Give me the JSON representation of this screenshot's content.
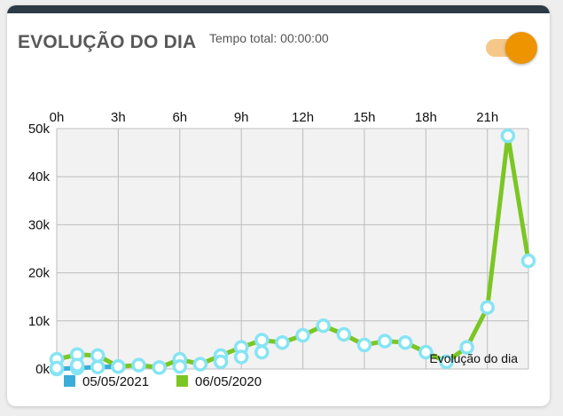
{
  "header": {
    "title": "EVOLUÇÃO DO DIA",
    "subtitle": "Tempo total: 00:00:00",
    "toggle_on": true,
    "toggle_color": "#ee9400"
  },
  "chart_data": {
    "type": "line",
    "title": "",
    "description": "Evolução do dia",
    "x_ticks": [
      "0h",
      "3h",
      "6h",
      "9h",
      "12h",
      "15h",
      "18h",
      "21h"
    ],
    "x_range": [
      0,
      23
    ],
    "y_ticks": [
      "0k",
      "10k",
      "20k",
      "30k",
      "40k",
      "50k"
    ],
    "ylim": [
      0,
      50000
    ],
    "grid": true,
    "legend_position": "bottom-left",
    "series": [
      {
        "name": "05/05/2021",
        "color": "#3aaed8",
        "x": [
          0,
          1,
          2,
          3
        ],
        "y": [
          0,
          200,
          400,
          500
        ]
      },
      {
        "name": "06/05/2020",
        "color": "#7cc624",
        "x": [
          0,
          1,
          2,
          3,
          4,
          5,
          6,
          7,
          8,
          9,
          10,
          11,
          12,
          13,
          14,
          15,
          16,
          17,
          18,
          19,
          20,
          21,
          22,
          23
        ],
        "y": [
          2000,
          3000,
          2800,
          500,
          800,
          300,
          2000,
          1000,
          2800,
          4500,
          6000,
          5500,
          7000,
          9000,
          7200,
          5000,
          5800,
          5500,
          3500,
          1500,
          4500,
          12800,
          48500,
          22500
        ]
      }
    ],
    "extra_markers": [
      {
        "x": 0,
        "y": 200
      },
      {
        "x": 1,
        "y": 800
      },
      {
        "x": 6,
        "y": 500
      },
      {
        "x": 8,
        "y": 1500
      },
      {
        "x": 9,
        "y": 2500
      },
      {
        "x": 10,
        "y": 3500
      }
    ]
  }
}
